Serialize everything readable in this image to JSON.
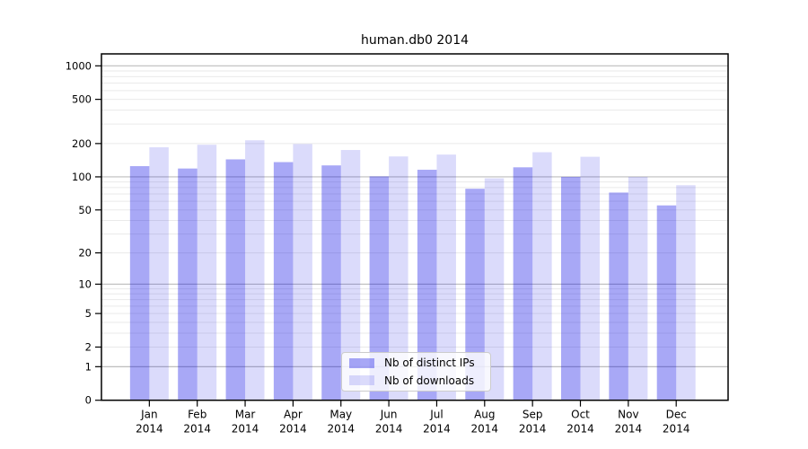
{
  "title": "human.db0 2014",
  "chart_data": {
    "type": "bar",
    "title": "human.db0 2014",
    "yscale": "log1p",
    "ylim": [
      0,
      1230
    ],
    "y_ticks": [
      0,
      1,
      2,
      5,
      10,
      20,
      50,
      100,
      200,
      500,
      1000
    ],
    "grid": {
      "major_lines": [
        1,
        10,
        100,
        1000
      ],
      "minor_lines": "2-9 of each decade",
      "grid_on": true
    },
    "categories": [
      "Jan",
      "Feb",
      "Mar",
      "Apr",
      "May",
      "Jun",
      "Jul",
      "Aug",
      "Sep",
      "Oct",
      "Nov",
      "Dec"
    ],
    "year_label": "2014",
    "series": [
      {
        "name": "Nb of distinct IPs",
        "color": "rgba(0,0,230,0.34)",
        "values": [
          125,
          119,
          144,
          136,
          127,
          101,
          116,
          78,
          122,
          100,
          72,
          55
        ]
      },
      {
        "name": "Nb of downloads",
        "color": "rgba(0,0,230,0.14)",
        "values": [
          185,
          195,
          214,
          198,
          175,
          153,
          159,
          97,
          167,
          152,
          100,
          84
        ]
      }
    ],
    "legend_position": "lower center"
  },
  "colors": {
    "background": "#ffffff",
    "grid_major": "#bdbdbd",
    "grid_minor": "#eaeaea",
    "spine": "#000000",
    "bar_distinct_ips": "rgba(0,0,230,0.34)",
    "bar_downloads": "rgba(0,0,230,0.14)"
  }
}
